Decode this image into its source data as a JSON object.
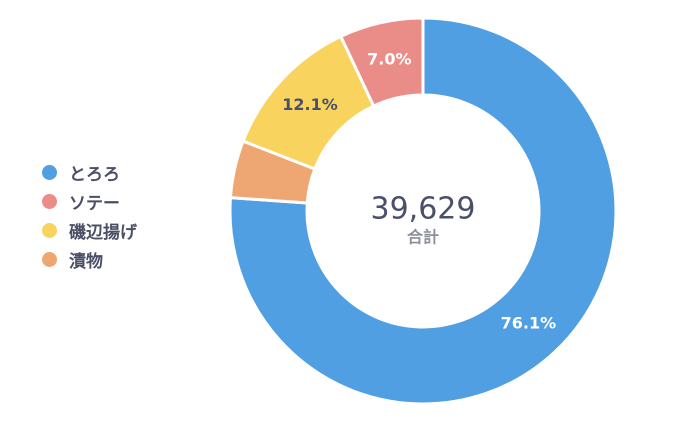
{
  "chart_data": {
    "type": "pie",
    "donut": true,
    "total": "39,629",
    "total_label": "合計",
    "legend_position": "left",
    "slices": [
      {
        "name": "とろろ",
        "percent": 76.1,
        "label": "76.1%",
        "color": "#519fe3",
        "label_color": "#ffffff"
      },
      {
        "name": "漬物",
        "percent": 4.8,
        "label": "",
        "color": "#eea772",
        "label_color": "#4a4f6a"
      },
      {
        "name": "磯辺揚げ",
        "percent": 12.1,
        "label": "12.1%",
        "color": "#f8d45f",
        "label_color": "#4a4f6a"
      },
      {
        "name": "ソテー",
        "percent": 7.0,
        "label": "7.0%",
        "color": "#ea8d89",
        "label_color": "#ffffff"
      }
    ],
    "legend": [
      {
        "name": "とろろ",
        "color": "#519fe3"
      },
      {
        "name": "ソテー",
        "color": "#ea8d89"
      },
      {
        "name": "磯辺揚げ",
        "color": "#f8d45f"
      },
      {
        "name": "漬物",
        "color": "#eea772"
      }
    ]
  }
}
